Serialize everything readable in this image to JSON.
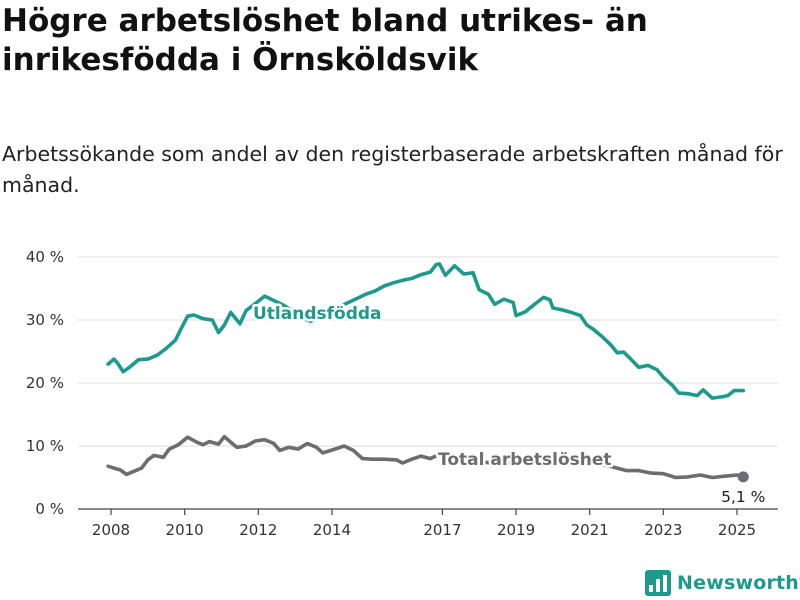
{
  "title": "Högre arbetslöshet bland utrikes- än inrikesfödda i Örnsköldsvik",
  "subtitle": "Arbetssökande som andel av den registerbaserade arbetskraften månad för månad.",
  "brand": {
    "name": "Newsworthy",
    "icon": "newsworthy-logo-icon",
    "color": "#1d9a8d"
  },
  "chart_data": {
    "type": "line",
    "title": "Högre arbetslöshet bland utrikes- än inrikesfödda i Örnsköldsvik",
    "subtitle": "Arbetssökande som andel av den registerbaserade arbetskraften månad för månad.",
    "ylim": [
      0,
      40
    ],
    "yticks": [
      0,
      10,
      20,
      30,
      40
    ],
    "ytick_labels": [
      "0 %",
      "10 %",
      "20 %",
      "30 %",
      "40 %"
    ],
    "xlim": [
      2007.7,
      2025.5
    ],
    "xticks": [
      2008,
      2010,
      2012,
      2014,
      2017,
      2019,
      2021,
      2023,
      2025
    ],
    "xtick_labels": [
      "2008",
      "2010",
      "2012",
      "2014",
      "2017",
      "2019",
      "2021",
      "2023",
      "2025"
    ],
    "grid": true,
    "legend": "inline",
    "series": [
      {
        "name": "Utlandsfödda",
        "color": "#1d9a8d",
        "points": [
          [
            2007.92,
            23.0
          ],
          [
            2008.08,
            23.8
          ],
          [
            2008.17,
            23.2
          ],
          [
            2008.33,
            21.8
          ],
          [
            2008.5,
            22.5
          ],
          [
            2008.75,
            23.7
          ],
          [
            2009.0,
            23.8
          ],
          [
            2009.25,
            24.4
          ],
          [
            2009.5,
            25.5
          ],
          [
            2009.75,
            26.8
          ],
          [
            2009.92,
            28.8
          ],
          [
            2010.08,
            30.6
          ],
          [
            2010.25,
            30.8
          ],
          [
            2010.5,
            30.2
          ],
          [
            2010.75,
            30.0
          ],
          [
            2010.92,
            28.0
          ],
          [
            2011.08,
            29.2
          ],
          [
            2011.25,
            31.2
          ],
          [
            2011.5,
            29.4
          ],
          [
            2011.67,
            31.5
          ],
          [
            2011.92,
            32.6
          ],
          [
            2012.17,
            33.8
          ],
          [
            2012.42,
            33.1
          ],
          [
            2012.67,
            32.4
          ],
          [
            2012.92,
            31.5
          ],
          [
            2013.17,
            30.4
          ],
          [
            2013.42,
            29.8
          ],
          [
            2013.67,
            30.6
          ],
          [
            2013.92,
            31.4
          ],
          [
            2014.17,
            32.1
          ],
          [
            2014.42,
            32.7
          ],
          [
            2014.67,
            33.4
          ],
          [
            2014.92,
            34.1
          ],
          [
            2015.17,
            34.6
          ],
          [
            2015.42,
            35.4
          ],
          [
            2015.67,
            35.9
          ],
          [
            2015.92,
            36.3
          ],
          [
            2016.17,
            36.6
          ],
          [
            2016.42,
            37.2
          ],
          [
            2016.67,
            37.6
          ],
          [
            2016.83,
            38.8
          ],
          [
            2016.92,
            38.9
          ],
          [
            2017.08,
            37.1
          ],
          [
            2017.33,
            38.6
          ],
          [
            2017.58,
            37.3
          ],
          [
            2017.83,
            37.5
          ],
          [
            2018.0,
            34.8
          ],
          [
            2018.25,
            34.1
          ],
          [
            2018.42,
            32.5
          ],
          [
            2018.67,
            33.3
          ],
          [
            2018.92,
            32.8
          ],
          [
            2019.0,
            30.7
          ],
          [
            2019.25,
            31.3
          ],
          [
            2019.5,
            32.5
          ],
          [
            2019.75,
            33.6
          ],
          [
            2019.92,
            33.2
          ],
          [
            2020.0,
            31.9
          ],
          [
            2020.25,
            31.6
          ],
          [
            2020.5,
            31.2
          ],
          [
            2020.75,
            30.7
          ],
          [
            2020.92,
            29.2
          ],
          [
            2021.08,
            28.6
          ],
          [
            2021.33,
            27.4
          ],
          [
            2021.58,
            26.0
          ],
          [
            2021.75,
            24.8
          ],
          [
            2021.92,
            24.9
          ],
          [
            2022.08,
            24.0
          ],
          [
            2022.33,
            22.5
          ],
          [
            2022.58,
            22.8
          ],
          [
            2022.83,
            22.1
          ],
          [
            2023.0,
            20.9
          ],
          [
            2023.25,
            19.6
          ],
          [
            2023.42,
            18.4
          ],
          [
            2023.67,
            18.3
          ],
          [
            2023.92,
            18.0
          ],
          [
            2024.08,
            18.9
          ],
          [
            2024.33,
            17.6
          ],
          [
            2024.58,
            17.8
          ],
          [
            2024.75,
            18.0
          ],
          [
            2024.92,
            18.8
          ],
          [
            2025.17,
            18.8
          ]
        ]
      },
      {
        "name": "Total arbetslöshet",
        "color": "#6c6c72",
        "points": [
          [
            2007.92,
            6.8
          ],
          [
            2008.08,
            6.5
          ],
          [
            2008.25,
            6.2
          ],
          [
            2008.42,
            5.5
          ],
          [
            2008.67,
            6.1
          ],
          [
            2008.83,
            6.5
          ],
          [
            2009.0,
            7.8
          ],
          [
            2009.17,
            8.5
          ],
          [
            2009.42,
            8.2
          ],
          [
            2009.58,
            9.5
          ],
          [
            2009.83,
            10.2
          ],
          [
            2010.08,
            11.4
          ],
          [
            2010.33,
            10.6
          ],
          [
            2010.5,
            10.2
          ],
          [
            2010.67,
            10.7
          ],
          [
            2010.92,
            10.3
          ],
          [
            2011.08,
            11.5
          ],
          [
            2011.25,
            10.6
          ],
          [
            2011.42,
            9.8
          ],
          [
            2011.67,
            10.0
          ],
          [
            2011.92,
            10.8
          ],
          [
            2012.17,
            11.0
          ],
          [
            2012.42,
            10.4
          ],
          [
            2012.58,
            9.3
          ],
          [
            2012.83,
            9.8
          ],
          [
            2013.08,
            9.5
          ],
          [
            2013.33,
            10.4
          ],
          [
            2013.58,
            9.8
          ],
          [
            2013.75,
            8.9
          ],
          [
            2013.92,
            9.2
          ],
          [
            2014.08,
            9.5
          ],
          [
            2014.33,
            10.0
          ],
          [
            2014.58,
            9.3
          ],
          [
            2014.83,
            8.0
          ],
          [
            2015.08,
            7.9
          ],
          [
            2015.42,
            7.9
          ],
          [
            2015.75,
            7.8
          ],
          [
            2015.92,
            7.3
          ],
          [
            2016.17,
            7.9
          ],
          [
            2016.42,
            8.4
          ],
          [
            2016.67,
            8.0
          ],
          [
            2016.92,
            8.7
          ],
          [
            2017.25,
            8.1
          ],
          [
            2017.67,
            7.6
          ],
          [
            2018.17,
            7.4
          ],
          [
            2018.67,
            7.2
          ],
          [
            2019.17,
            7.5
          ],
          [
            2019.67,
            7.6
          ],
          [
            2020.17,
            8.1
          ],
          [
            2020.67,
            7.6
          ],
          [
            2021.17,
            7.3
          ],
          [
            2021.67,
            6.6
          ],
          [
            2022.0,
            6.1
          ],
          [
            2022.33,
            6.1
          ],
          [
            2022.67,
            5.7
          ],
          [
            2023.0,
            5.6
          ],
          [
            2023.33,
            5.0
          ],
          [
            2023.67,
            5.1
          ],
          [
            2024.0,
            5.4
          ],
          [
            2024.33,
            5.0
          ],
          [
            2024.67,
            5.2
          ],
          [
            2025.0,
            5.4
          ],
          [
            2025.17,
            5.1
          ]
        ]
      }
    ],
    "series_labels": [
      {
        "text": "Utlandsfödda",
        "series": "Utlandsfödda"
      },
      {
        "text": "Total arbetslöshet",
        "series": "Total arbetslöshet"
      }
    ],
    "annotations": [
      {
        "text": "5,1 %",
        "x": 2025.17,
        "y": 5.1,
        "marker": true,
        "series": "Total arbetslöshet"
      }
    ]
  }
}
